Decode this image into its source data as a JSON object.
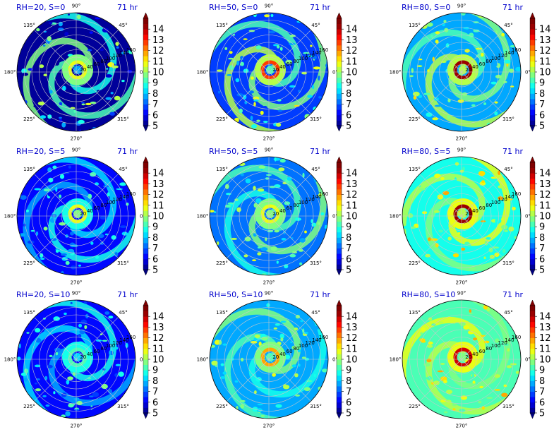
{
  "chart_data": {
    "type": "polar-contour-grid",
    "time_label": "71 hr",
    "angle_ticks": [
      "90°",
      "45°",
      "0°",
      "315°",
      "270°",
      "225°",
      "180°",
      "135°"
    ],
    "angle_tick_degrees": [
      90,
      45,
      0,
      315,
      270,
      225,
      180,
      135
    ],
    "radial_ticks": [
      20,
      40,
      60,
      80,
      100,
      120,
      140,
      160
    ],
    "radial_label_angle_deg": 22.5,
    "rmax": 160,
    "colorbar": {
      "ticks": [
        5,
        6,
        7,
        8,
        9,
        10,
        11,
        12,
        13,
        14
      ],
      "range": [
        5,
        14.5
      ],
      "levels": [
        5,
        5.5,
        6,
        6.5,
        7,
        7.5,
        8,
        8.5,
        9,
        9.5,
        10,
        10.5,
        11,
        11.5,
        12,
        12.5,
        13,
        13.5,
        14,
        14.5
      ],
      "extend": "both",
      "colormap": "jet"
    },
    "panels": [
      {
        "title": "RH=20, S=0",
        "rh": 20,
        "s": 0,
        "background_value": 5.0,
        "core_value": 10.5,
        "spiral_value": 9.5,
        "eye_value": 7.5
      },
      {
        "title": "RH=50, S=0",
        "rh": 50,
        "s": 0,
        "background_value": 6.8,
        "core_value": 12.5,
        "spiral_value": 10.0,
        "eye_value": 9.0
      },
      {
        "title": "RH=80, S=0",
        "rh": 80,
        "s": 0,
        "background_value": 7.8,
        "core_value": 14.0,
        "spiral_value": 10.0,
        "eye_value": 10.0
      },
      {
        "title": "RH=20, S=5",
        "rh": 20,
        "s": 5,
        "background_value": 6.2,
        "core_value": 10.5,
        "spiral_value": 8.5,
        "eye_value": 9.5
      },
      {
        "title": "RH=50, S=5",
        "rh": 50,
        "s": 5,
        "background_value": 7.4,
        "core_value": 10.5,
        "spiral_value": 9.5,
        "eye_value": 9.5
      },
      {
        "title": "RH=80, S=5",
        "rh": 80,
        "s": 5,
        "background_value": 8.6,
        "core_value": 14.0,
        "spiral_value": 10.5,
        "eye_value": 10.0
      },
      {
        "title": "RH=20, S=10",
        "rh": 20,
        "s": 10,
        "background_value": 6.2,
        "core_value": 9.0,
        "spiral_value": 8.5,
        "eye_value": 8.0
      },
      {
        "title": "RH=50, S=10",
        "rh": 50,
        "s": 10,
        "background_value": 7.8,
        "core_value": 11.5,
        "spiral_value": 9.5,
        "eye_value": 9.0
      },
      {
        "title": "RH=80, S=10",
        "rh": 80,
        "s": 10,
        "background_value": 9.0,
        "core_value": 13.5,
        "spiral_value": 10.5,
        "eye_value": 9.5
      }
    ]
  }
}
